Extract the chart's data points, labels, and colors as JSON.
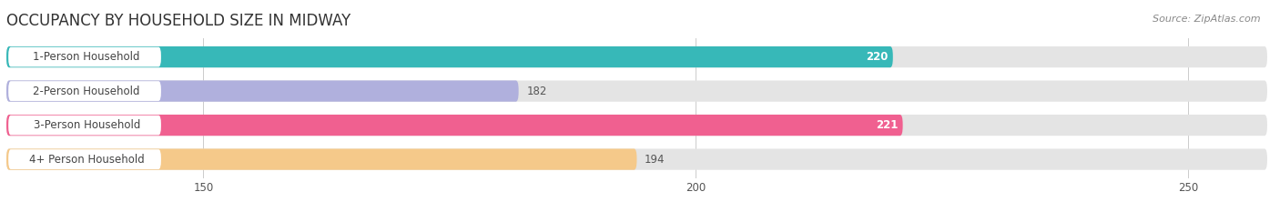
{
  "title": "OCCUPANCY BY HOUSEHOLD SIZE IN MIDWAY",
  "source": "Source: ZipAtlas.com",
  "categories": [
    "1-Person Household",
    "2-Person Household",
    "3-Person Household",
    "4+ Person Household"
  ],
  "values": [
    220,
    182,
    221,
    194
  ],
  "bar_colors": [
    "#37b8b8",
    "#b0b0dd",
    "#f06090",
    "#f5c98a"
  ],
  "label_colors": [
    "#ffffff",
    "#555555",
    "#ffffff",
    "#555555"
  ],
  "xmin": 130,
  "xmax": 258,
  "xticks": [
    150,
    200,
    250
  ],
  "bar_height": 0.62,
  "background_color": "#ffffff",
  "bar_bg_color": "#e4e4e4",
  "title_fontsize": 12,
  "source_fontsize": 8,
  "label_fontsize": 8.5,
  "value_fontsize": 8.5,
  "tick_fontsize": 8.5
}
